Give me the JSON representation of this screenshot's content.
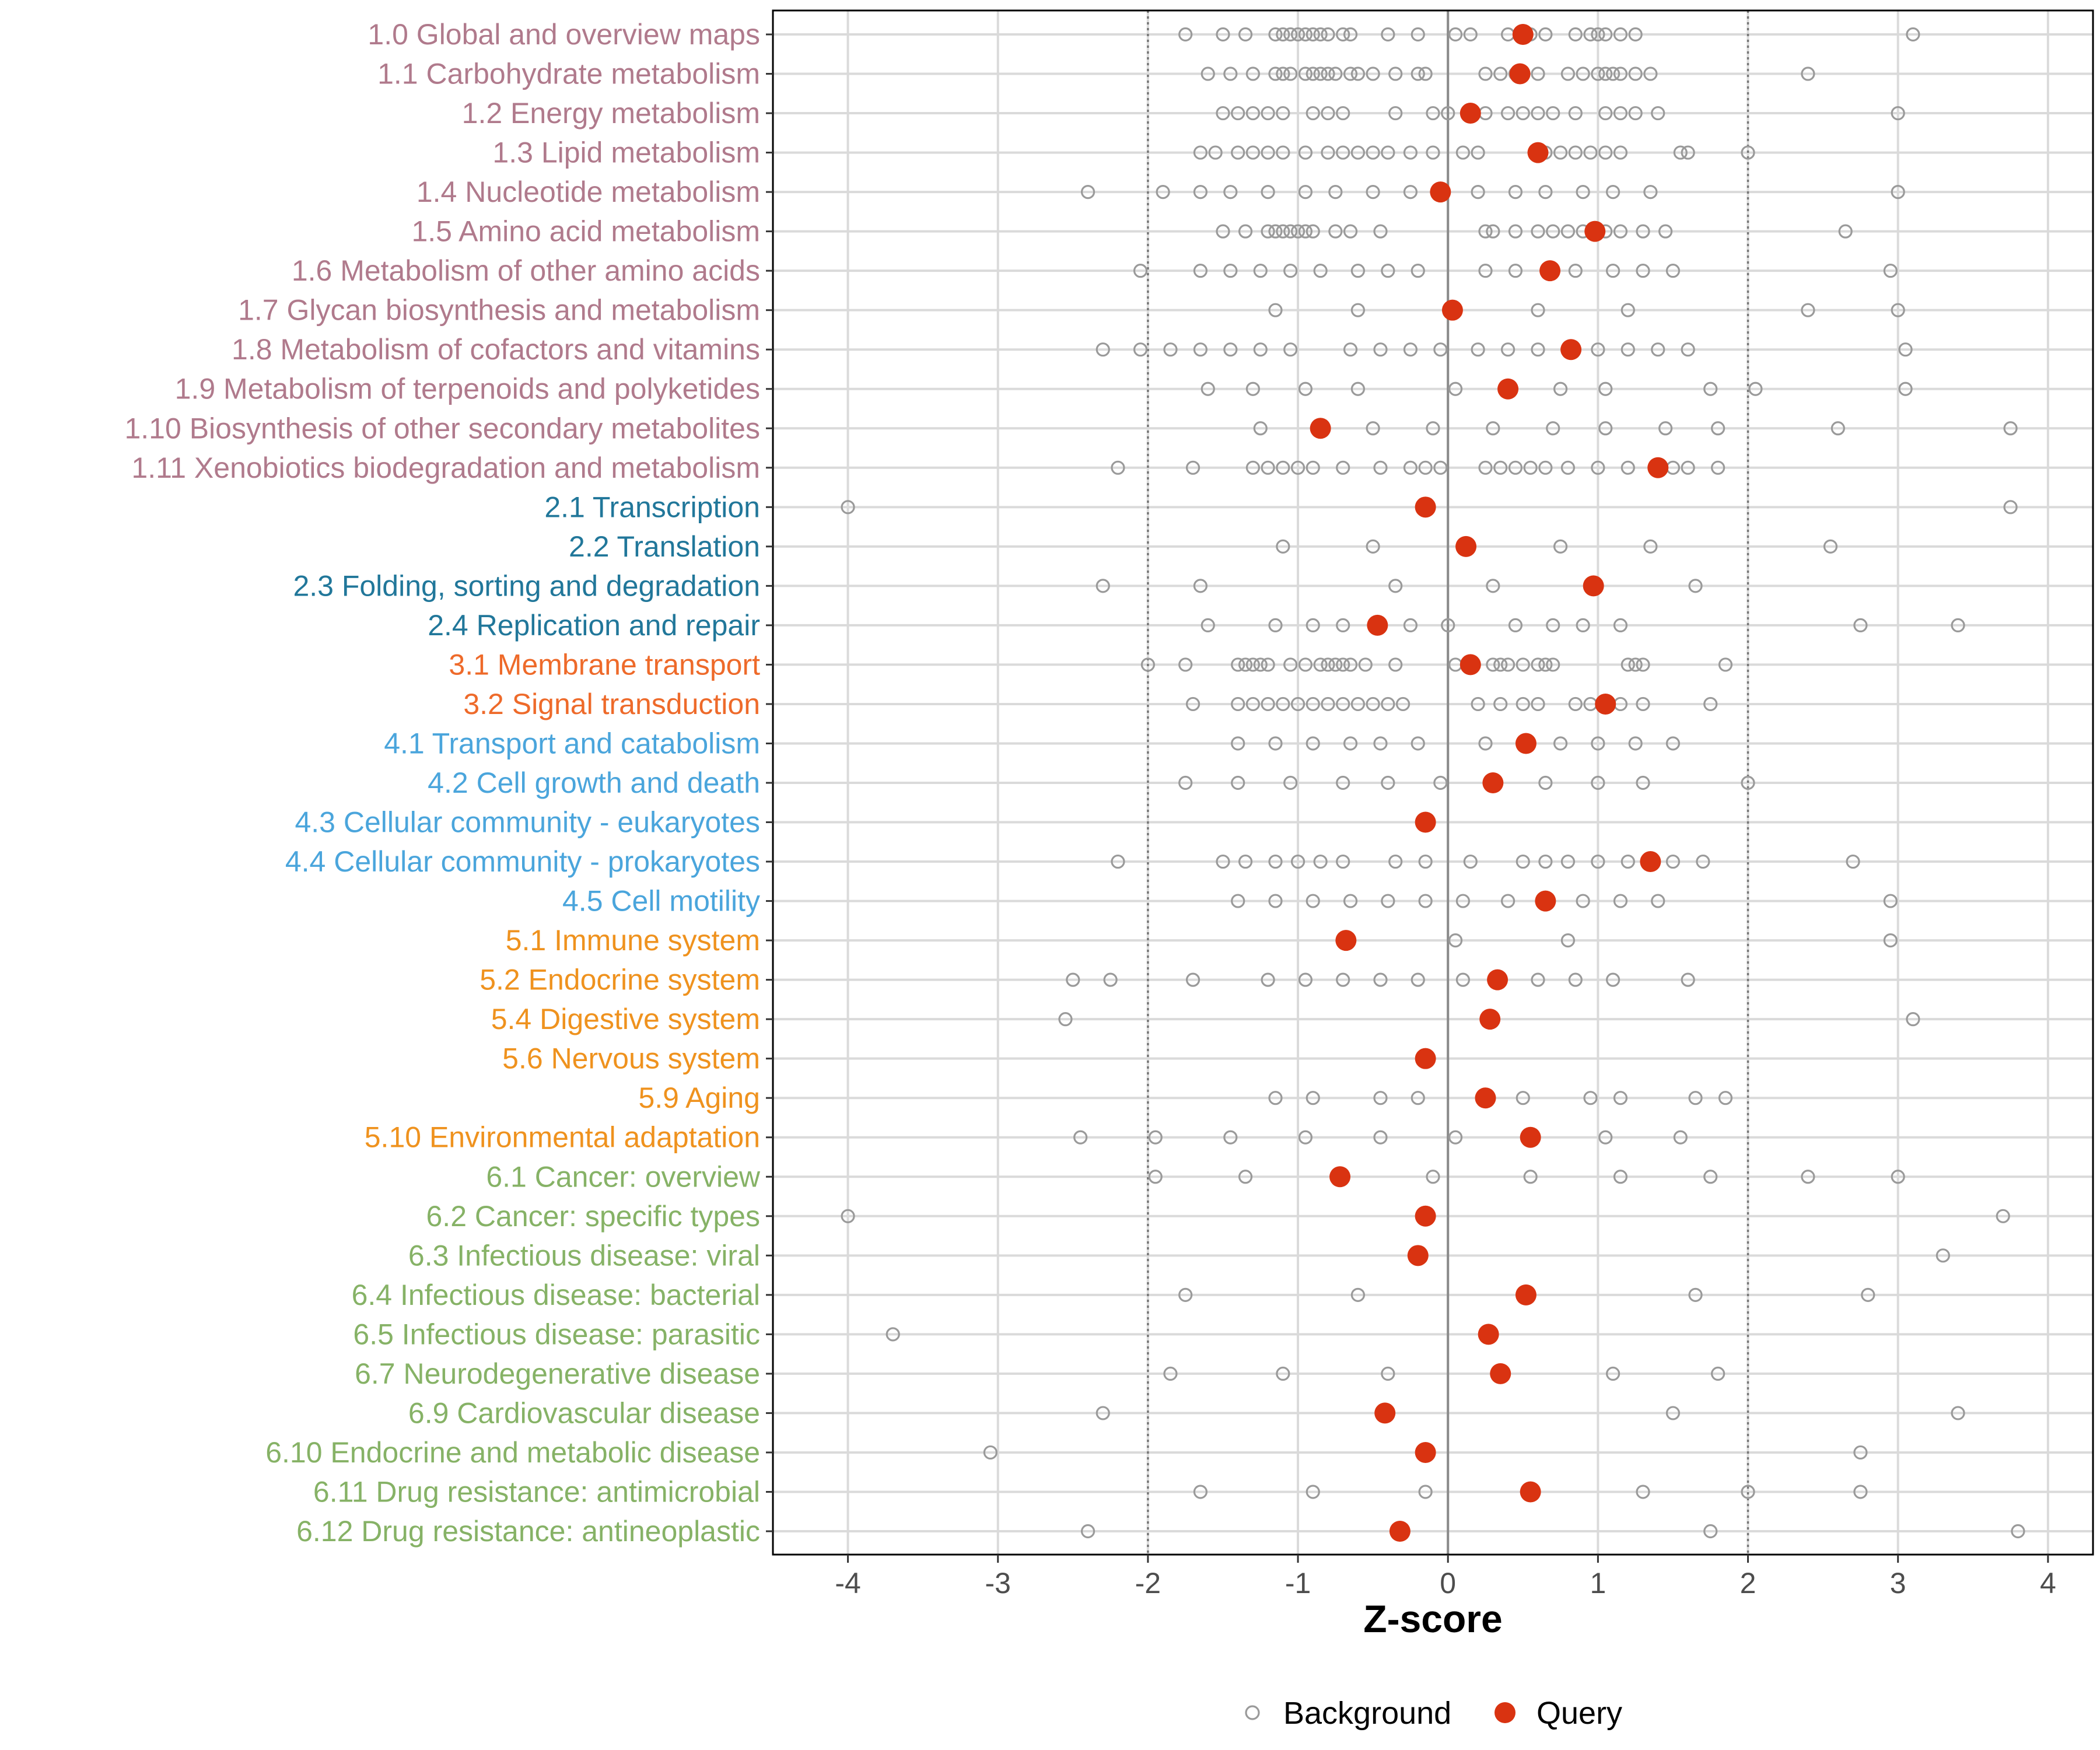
{
  "chart_data": {
    "type": "scatter",
    "xlabel": "Z-score",
    "ylabel": "",
    "xlim": [
      -4.5,
      4.3
    ],
    "x_ticks": [
      -4,
      -3,
      -2,
      -1,
      0,
      1,
      2,
      3,
      4
    ],
    "x_tick_labels": [
      "-4",
      "-3",
      "-2",
      "-1",
      "0",
      "1",
      "2",
      "3",
      "4"
    ],
    "reference_lines": [
      {
        "x": -2,
        "style": "dotted"
      },
      {
        "x": 0,
        "style": "solid"
      },
      {
        "x": 2,
        "style": "dotted"
      }
    ],
    "legend": {
      "position": "bottom",
      "entries": [
        {
          "label": "Background",
          "marker": "open-circle",
          "color": "#9a9a9a"
        },
        {
          "label": "Query",
          "marker": "filled-circle",
          "color": "#d93311"
        }
      ]
    },
    "group_colors": {
      "1": "#b07a8c",
      "2": "#21779a",
      "3": "#ee6a2a",
      "4": "#4aa5dc",
      "5": "#ef921e",
      "6": "#86b266"
    },
    "categories": [
      {
        "label": "1.0 Global and overview maps",
        "group": "1",
        "query": 0.5,
        "background": [
          -1.75,
          -1.5,
          -1.35,
          -1.15,
          -1.1,
          -1.05,
          -1.0,
          -0.95,
          -0.9,
          -0.85,
          -0.8,
          -0.7,
          -0.65,
          -0.4,
          -0.2,
          0.05,
          0.15,
          0.4,
          0.55,
          0.65,
          0.85,
          0.95,
          1.0,
          1.05,
          1.15,
          1.25,
          3.1
        ]
      },
      {
        "label": "1.1 Carbohydrate metabolism",
        "group": "1",
        "query": 0.48,
        "background": [
          -1.6,
          -1.45,
          -1.3,
          -1.15,
          -1.1,
          -1.05,
          -0.95,
          -0.9,
          -0.85,
          -0.8,
          -0.75,
          -0.65,
          -0.6,
          -0.5,
          -0.35,
          -0.2,
          -0.15,
          0.25,
          0.35,
          0.45,
          0.6,
          0.8,
          0.9,
          1.0,
          1.05,
          1.1,
          1.15,
          1.25,
          1.35,
          2.4
        ]
      },
      {
        "label": "1.2 Energy metabolism",
        "group": "1",
        "query": 0.15,
        "background": [
          -1.5,
          -1.4,
          -1.3,
          -1.2,
          -1.1,
          -0.9,
          -0.8,
          -0.7,
          -0.35,
          -0.1,
          0.0,
          0.25,
          0.4,
          0.5,
          0.6,
          0.7,
          0.85,
          1.05,
          1.15,
          1.25,
          1.4,
          3.0
        ]
      },
      {
        "label": "1.3 Lipid metabolism",
        "group": "1",
        "query": 0.6,
        "background": [
          -1.65,
          -1.55,
          -1.4,
          -1.3,
          -1.2,
          -1.1,
          -0.95,
          -0.8,
          -0.7,
          -0.6,
          -0.5,
          -0.4,
          -0.25,
          -0.1,
          0.1,
          0.2,
          0.65,
          0.75,
          0.85,
          0.95,
          1.05,
          1.15,
          1.55,
          1.6,
          2.0
        ]
      },
      {
        "label": "1.4 Nucleotide metabolism",
        "group": "1",
        "query": -0.05,
        "background": [
          -2.4,
          -1.9,
          -1.65,
          -1.45,
          -1.2,
          -0.95,
          -0.75,
          -0.5,
          -0.25,
          0.2,
          0.45,
          0.65,
          0.9,
          1.1,
          1.35,
          3.0
        ]
      },
      {
        "label": "1.5 Amino acid metabolism",
        "group": "1",
        "query": 0.98,
        "background": [
          -1.5,
          -1.35,
          -1.2,
          -1.15,
          -1.1,
          -1.05,
          -1.0,
          -0.95,
          -0.9,
          -0.75,
          -0.65,
          -0.45,
          0.25,
          0.3,
          0.45,
          0.6,
          0.7,
          0.8,
          0.9,
          1.05,
          1.15,
          1.3,
          1.45,
          2.65
        ]
      },
      {
        "label": "1.6 Metabolism of other amino acids",
        "group": "1",
        "query": 0.68,
        "background": [
          -2.05,
          -1.65,
          -1.45,
          -1.25,
          -1.05,
          -0.85,
          -0.6,
          -0.4,
          -0.2,
          0.25,
          0.45,
          0.85,
          1.1,
          1.3,
          1.5,
          2.95
        ]
      },
      {
        "label": "1.7 Glycan biosynthesis and metabolism",
        "group": "1",
        "query": 0.03,
        "background": [
          -1.15,
          -0.6,
          0.6,
          1.2,
          2.4,
          3.0
        ]
      },
      {
        "label": "1.8 Metabolism of cofactors and vitamins",
        "group": "1",
        "query": 0.82,
        "background": [
          -2.3,
          -2.05,
          -1.85,
          -1.65,
          -1.45,
          -1.25,
          -1.05,
          -0.65,
          -0.45,
          -0.25,
          -0.05,
          0.2,
          0.4,
          0.6,
          1.0,
          1.2,
          1.4,
          1.6,
          3.05
        ]
      },
      {
        "label": "1.9 Metabolism of terpenoids and polyketides",
        "group": "1",
        "query": 0.4,
        "background": [
          -1.6,
          -1.3,
          -0.95,
          -0.6,
          0.05,
          0.75,
          1.05,
          1.75,
          2.05,
          3.05
        ]
      },
      {
        "label": "1.10 Biosynthesis of other secondary metabolites",
        "group": "1",
        "query": -0.85,
        "background": [
          -1.25,
          -0.5,
          -0.1,
          0.3,
          0.7,
          1.05,
          1.45,
          1.8,
          2.6,
          3.75
        ]
      },
      {
        "label": "1.11 Xenobiotics biodegradation and metabolism",
        "group": "1",
        "query": 1.4,
        "background": [
          -2.2,
          -1.7,
          -1.3,
          -1.2,
          -1.1,
          -1.0,
          -0.9,
          -0.7,
          -0.45,
          -0.25,
          -0.15,
          -0.05,
          0.25,
          0.35,
          0.45,
          0.55,
          0.65,
          0.8,
          1.0,
          1.2,
          1.5,
          1.6,
          1.8
        ]
      },
      {
        "label": "2.1 Transcription",
        "group": "2",
        "query": -0.15,
        "background": [
          -4.0,
          3.75
        ]
      },
      {
        "label": "2.2 Translation",
        "group": "2",
        "query": 0.12,
        "background": [
          -1.1,
          -0.5,
          0.75,
          1.35,
          2.55
        ]
      },
      {
        "label": "2.3 Folding, sorting and degradation",
        "group": "2",
        "query": 0.97,
        "background": [
          -2.3,
          -1.65,
          -0.35,
          0.3,
          1.65
        ]
      },
      {
        "label": "2.4 Replication and repair",
        "group": "2",
        "query": -0.47,
        "background": [
          -1.6,
          -1.15,
          -0.9,
          -0.7,
          -0.25,
          0.0,
          0.45,
          0.7,
          0.9,
          1.15,
          2.75,
          3.4
        ]
      },
      {
        "label": "3.1 Membrane transport",
        "group": "3",
        "query": 0.15,
        "background": [
          -2.0,
          -1.75,
          -1.4,
          -1.35,
          -1.3,
          -1.25,
          -1.2,
          -1.05,
          -0.95,
          -0.85,
          -0.8,
          -0.75,
          -0.7,
          -0.65,
          -0.55,
          -0.35,
          0.05,
          0.3,
          0.35,
          0.4,
          0.5,
          0.6,
          0.65,
          0.7,
          1.2,
          1.25,
          1.3,
          1.85
        ]
      },
      {
        "label": "3.2 Signal transduction",
        "group": "3",
        "query": 1.05,
        "background": [
          -1.7,
          -1.4,
          -1.3,
          -1.2,
          -1.1,
          -1.0,
          -0.9,
          -0.8,
          -0.7,
          -0.6,
          -0.5,
          -0.4,
          -0.3,
          0.2,
          0.35,
          0.5,
          0.6,
          0.85,
          0.95,
          1.15,
          1.3,
          1.75
        ]
      },
      {
        "label": "4.1 Transport and catabolism",
        "group": "4",
        "query": 0.52,
        "background": [
          -1.4,
          -1.15,
          -0.9,
          -0.65,
          -0.45,
          -0.2,
          0.25,
          0.75,
          1.0,
          1.25,
          1.5
        ]
      },
      {
        "label": "4.2 Cell growth and death",
        "group": "4",
        "query": 0.3,
        "background": [
          -1.75,
          -1.4,
          -1.05,
          -0.7,
          -0.4,
          -0.05,
          0.65,
          1.0,
          1.3,
          2.0
        ]
      },
      {
        "label": "4.3 Cellular community - eukaryotes",
        "group": "4",
        "query": -0.15,
        "background": []
      },
      {
        "label": "4.4 Cellular community - prokaryotes",
        "group": "4",
        "query": 1.35,
        "background": [
          -2.2,
          -1.5,
          -1.35,
          -1.15,
          -1.0,
          -0.85,
          -0.7,
          -0.35,
          -0.15,
          0.15,
          0.5,
          0.65,
          0.8,
          1.0,
          1.2,
          1.5,
          1.7,
          2.7
        ]
      },
      {
        "label": "4.5 Cell motility",
        "group": "4",
        "query": 0.65,
        "background": [
          -1.4,
          -1.15,
          -0.9,
          -0.65,
          -0.4,
          -0.15,
          0.1,
          0.4,
          0.9,
          1.15,
          1.4,
          2.95
        ]
      },
      {
        "label": "5.1 Immune system",
        "group": "5",
        "query": -0.68,
        "background": [
          0.05,
          0.8,
          2.95
        ]
      },
      {
        "label": "5.2 Endocrine system",
        "group": "5",
        "query": 0.33,
        "background": [
          -2.5,
          -2.25,
          -1.7,
          -1.2,
          -0.95,
          -0.7,
          -0.45,
          -0.2,
          0.1,
          0.6,
          0.85,
          1.1,
          1.6
        ]
      },
      {
        "label": "5.4 Digestive system",
        "group": "5",
        "query": 0.28,
        "background": [
          -2.55,
          3.1
        ]
      },
      {
        "label": "5.6 Nervous system",
        "group": "5",
        "query": -0.15,
        "background": []
      },
      {
        "label": "5.9 Aging",
        "group": "5",
        "query": 0.25,
        "background": [
          -1.15,
          -0.9,
          -0.45,
          -0.2,
          0.5,
          0.95,
          1.15,
          1.65,
          1.85
        ]
      },
      {
        "label": "5.10 Environmental adaptation",
        "group": "5",
        "query": 0.55,
        "background": [
          -2.45,
          -1.95,
          -1.45,
          -0.95,
          -0.45,
          0.05,
          1.05,
          1.55
        ]
      },
      {
        "label": "6.1 Cancer: overview",
        "group": "6",
        "query": -0.72,
        "background": [
          -1.95,
          -1.35,
          -0.1,
          0.55,
          1.15,
          1.75,
          2.4,
          3.0
        ]
      },
      {
        "label": "6.2 Cancer: specific types",
        "group": "6",
        "query": -0.15,
        "background": [
          -4.0,
          3.7
        ]
      },
      {
        "label": "6.3 Infectious disease: viral",
        "group": "6",
        "query": -0.2,
        "background": [
          3.3
        ]
      },
      {
        "label": "6.4 Infectious disease: bacterial",
        "group": "6",
        "query": 0.52,
        "background": [
          -1.75,
          -0.6,
          1.65,
          2.8
        ]
      },
      {
        "label": "6.5 Infectious disease: parasitic",
        "group": "6",
        "query": 0.27,
        "background": [
          -3.7
        ]
      },
      {
        "label": "6.7 Neurodegenerative disease",
        "group": "6",
        "query": 0.35,
        "background": [
          -1.85,
          -1.1,
          -0.4,
          1.1,
          1.8
        ]
      },
      {
        "label": "6.9 Cardiovascular disease",
        "group": "6",
        "query": -0.42,
        "background": [
          -2.3,
          1.5,
          3.4
        ]
      },
      {
        "label": "6.10 Endocrine and metabolic disease",
        "group": "6",
        "query": -0.15,
        "background": [
          -3.05,
          2.75
        ]
      },
      {
        "label": "6.11 Drug resistance: antimicrobial",
        "group": "6",
        "query": 0.55,
        "background": [
          -1.65,
          -0.9,
          -0.15,
          1.3,
          2.0,
          2.75
        ]
      },
      {
        "label": "6.12 Drug resistance: antineoplastic",
        "group": "6",
        "query": -0.32,
        "background": [
          -2.4,
          1.75,
          3.8
        ]
      }
    ]
  }
}
